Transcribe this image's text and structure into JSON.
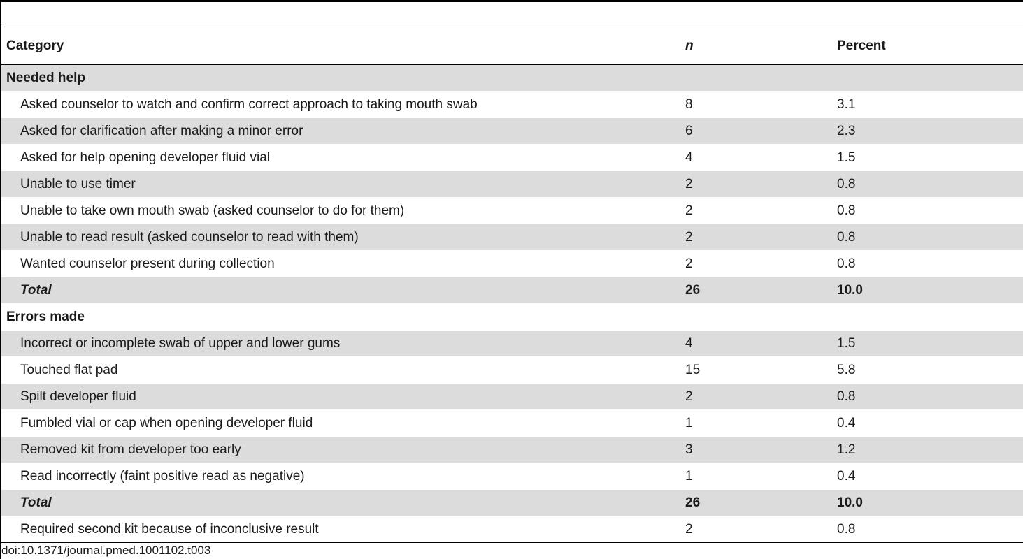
{
  "table": {
    "headers": {
      "category": "Category",
      "n": "n",
      "percent": "Percent"
    },
    "sections": [
      {
        "title": "Needed help",
        "rows": [
          {
            "category": "Asked counselor to watch and confirm correct approach to taking mouth swab",
            "n": "8",
            "percent": "3.1"
          },
          {
            "category": "Asked for clarification after making a minor error",
            "n": "6",
            "percent": "2.3"
          },
          {
            "category": "Asked for help opening developer fluid vial",
            "n": "4",
            "percent": "1.5"
          },
          {
            "category": "Unable to use timer",
            "n": "2",
            "percent": "0.8"
          },
          {
            "category": "Unable to take own mouth swab (asked counselor to do for them)",
            "n": "2",
            "percent": "0.8"
          },
          {
            "category": "Unable to read result (asked counselor to read with them)",
            "n": "2",
            "percent": "0.8"
          },
          {
            "category": "Wanted counselor present during collection",
            "n": "2",
            "percent": "0.8"
          }
        ],
        "total": {
          "label": "Total",
          "n": "26",
          "percent": "10.0"
        }
      },
      {
        "title": "Errors made",
        "rows": [
          {
            "category": "Incorrect or incomplete swab of upper and lower gums",
            "n": "4",
            "percent": "1.5"
          },
          {
            "category": "Touched flat pad",
            "n": "15",
            "percent": "5.8"
          },
          {
            "category": "Spilt developer fluid",
            "n": "2",
            "percent": "0.8"
          },
          {
            "category": "Fumbled vial or cap when opening developer fluid",
            "n": "1",
            "percent": "0.4"
          },
          {
            "category": "Removed kit from developer too early",
            "n": "3",
            "percent": "1.2"
          },
          {
            "category": "Read incorrectly (faint positive read as negative)",
            "n": "1",
            "percent": "0.4"
          }
        ],
        "total": {
          "label": "Total",
          "n": "26",
          "percent": "10.0"
        }
      }
    ],
    "final_row": {
      "category": "Required second kit because of inconclusive result",
      "n": "2",
      "percent": "0.8"
    }
  },
  "footnote": "doi:10.1371/journal.pmed.1001102.t003"
}
